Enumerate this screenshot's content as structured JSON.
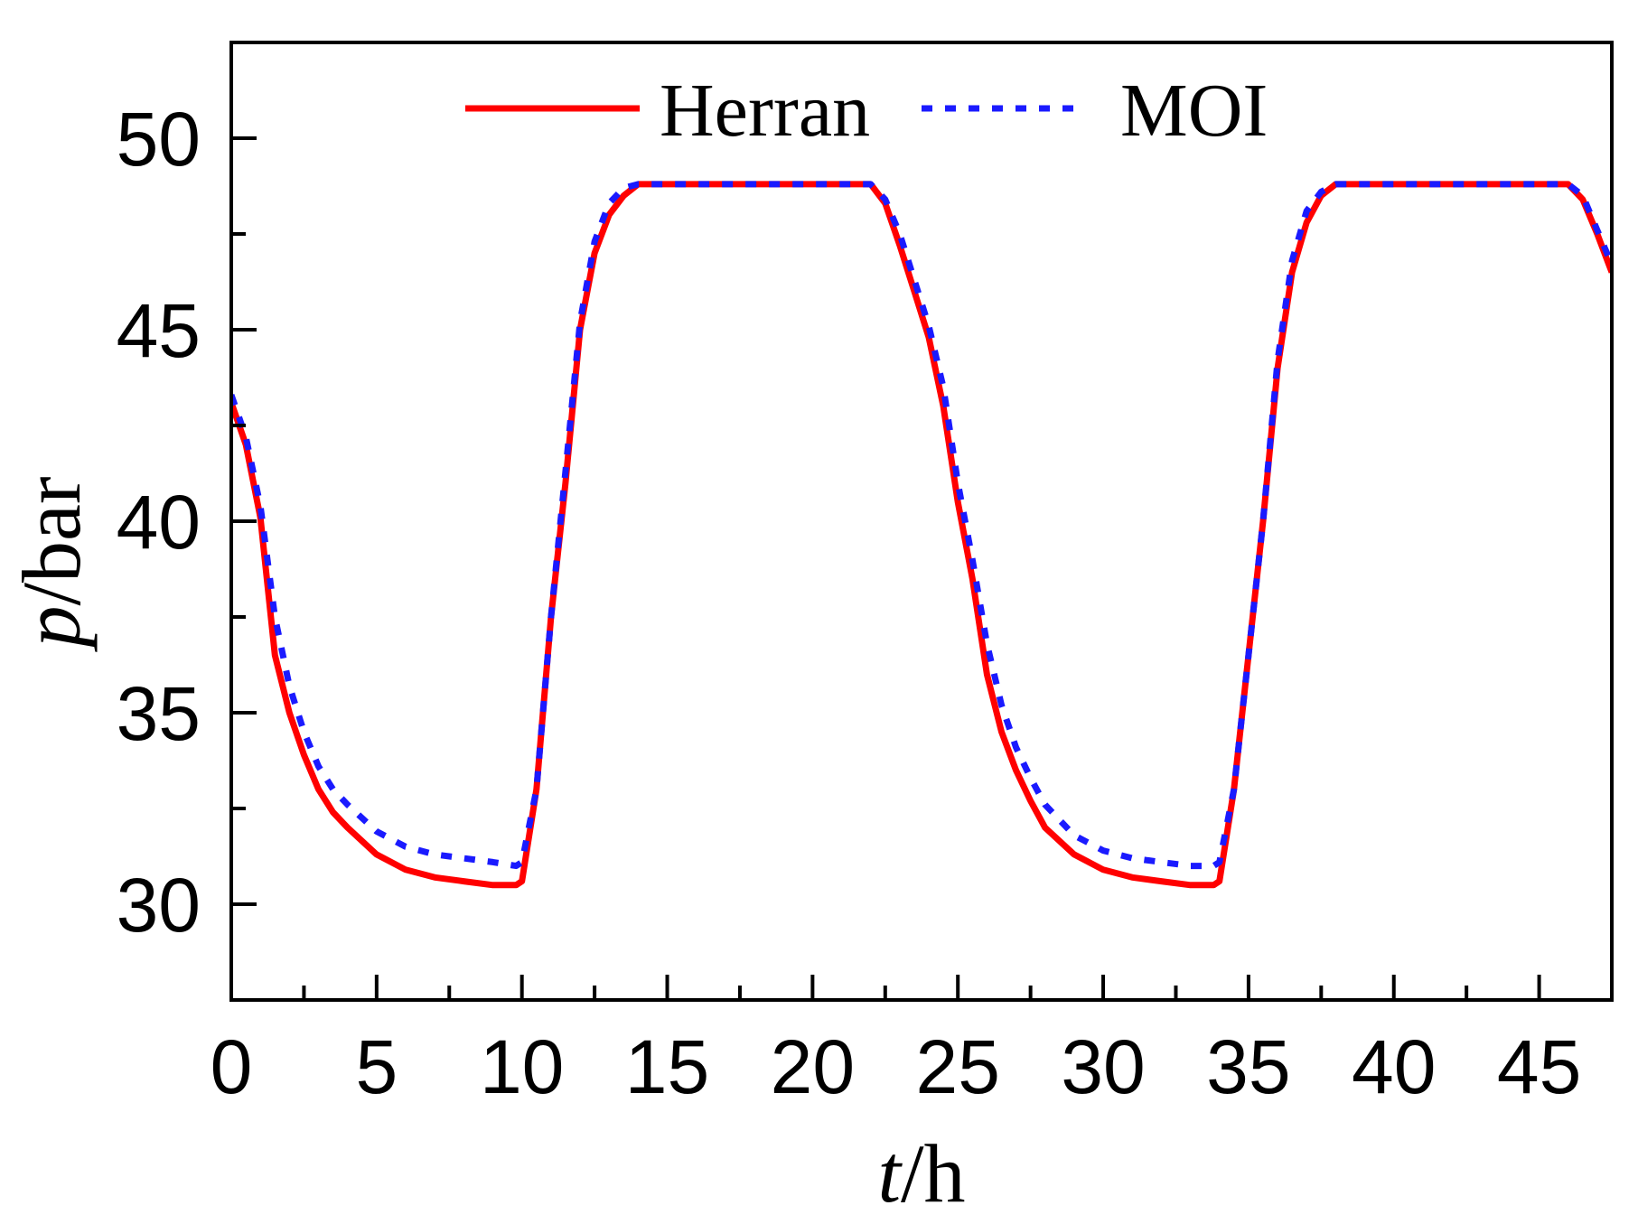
{
  "chart_data": {
    "type": "line",
    "title": "",
    "xlabel": {
      "variable": "t",
      "unit": "/h"
    },
    "ylabel": {
      "variable": "p",
      "unit": "/bar"
    },
    "xlim": [
      0,
      47.5
    ],
    "ylim": [
      27.5,
      52.5
    ],
    "xticks": [
      0,
      5,
      10,
      15,
      20,
      25,
      30,
      35,
      40,
      45
    ],
    "xticks_minor": [
      2.5,
      7.5,
      12.5,
      17.5,
      22.5,
      27.5,
      32.5,
      37.5,
      42.5
    ],
    "yticks": [
      30,
      35,
      40,
      45,
      50
    ],
    "yticks_minor": [
      32.5,
      37.5,
      42.5,
      47.5
    ],
    "grid": false,
    "legend_position": "top-center",
    "colors": {
      "herran": "#ff0000",
      "moi": "#1a1aff",
      "axis": "#000000"
    },
    "series": [
      {
        "name": "Herran",
        "style": "solid",
        "x": [
          0,
          0.5,
          1.0,
          1.5,
          2.0,
          2.5,
          3.0,
          3.5,
          4.0,
          5.0,
          6.0,
          7.0,
          8.0,
          9.0,
          9.8,
          10.0,
          10.5,
          11.0,
          11.5,
          12.0,
          12.5,
          13.0,
          13.5,
          14.0,
          16.0,
          18.0,
          20.0,
          22.0,
          22.5,
          23.0,
          23.5,
          24.0,
          24.5,
          25.0,
          25.5,
          26.0,
          26.5,
          27.0,
          27.5,
          28.0,
          29.0,
          30.0,
          31.0,
          32.0,
          33.0,
          33.8,
          34.0,
          34.5,
          35.0,
          35.5,
          36.0,
          36.5,
          37.0,
          37.5,
          38.0,
          40.0,
          42.0,
          44.0,
          46.0,
          46.5,
          47.0,
          47.5
        ],
        "y": [
          43.1,
          42.0,
          40.1,
          36.5,
          35.0,
          33.9,
          33.0,
          32.4,
          32.0,
          31.3,
          30.9,
          30.7,
          30.6,
          30.5,
          30.5,
          30.6,
          33.0,
          37.5,
          41.0,
          45.0,
          47.0,
          48.0,
          48.5,
          48.8,
          48.8,
          48.8,
          48.8,
          48.8,
          48.3,
          47.2,
          46.0,
          44.8,
          43.0,
          40.5,
          38.5,
          36.0,
          34.5,
          33.5,
          32.7,
          32.0,
          31.3,
          30.9,
          30.7,
          30.6,
          30.5,
          30.5,
          30.6,
          33.0,
          36.5,
          40.0,
          44.0,
          46.5,
          47.8,
          48.5,
          48.8,
          48.8,
          48.8,
          48.8,
          48.8,
          48.4,
          47.5,
          46.5
        ]
      },
      {
        "name": "MOI",
        "style": "dashed",
        "x": [
          0,
          0.5,
          1.0,
          1.5,
          2.0,
          2.5,
          3.0,
          3.5,
          4.0,
          5.0,
          6.0,
          7.0,
          8.0,
          9.0,
          9.8,
          10.0,
          10.5,
          11.0,
          11.5,
          12.0,
          12.5,
          13.0,
          13.5,
          14.0,
          16.0,
          18.0,
          20.0,
          22.0,
          22.5,
          23.0,
          23.5,
          24.0,
          24.5,
          25.0,
          25.5,
          26.0,
          26.5,
          27.0,
          27.5,
          28.0,
          29.0,
          30.0,
          31.0,
          32.0,
          33.0,
          33.8,
          34.0,
          34.5,
          35.0,
          35.5,
          36.0,
          36.5,
          37.0,
          37.5,
          38.0,
          40.0,
          42.0,
          44.0,
          46.0,
          46.5,
          47.0,
          47.5
        ],
        "y": [
          43.3,
          42.2,
          40.4,
          37.5,
          35.7,
          34.5,
          33.6,
          33.0,
          32.6,
          31.9,
          31.5,
          31.3,
          31.2,
          31.1,
          31.0,
          31.1,
          33.0,
          37.5,
          41.3,
          45.2,
          47.3,
          48.3,
          48.7,
          48.8,
          48.8,
          48.8,
          48.8,
          48.8,
          48.4,
          47.5,
          46.3,
          45.1,
          43.5,
          41.0,
          39.0,
          36.8,
          35.2,
          34.1,
          33.3,
          32.6,
          31.8,
          31.4,
          31.2,
          31.1,
          31.0,
          31.0,
          31.1,
          33.0,
          36.5,
          40.0,
          44.2,
          46.8,
          48.1,
          48.6,
          48.8,
          48.8,
          48.8,
          48.8,
          48.8,
          48.5,
          47.6,
          46.7
        ]
      }
    ]
  }
}
